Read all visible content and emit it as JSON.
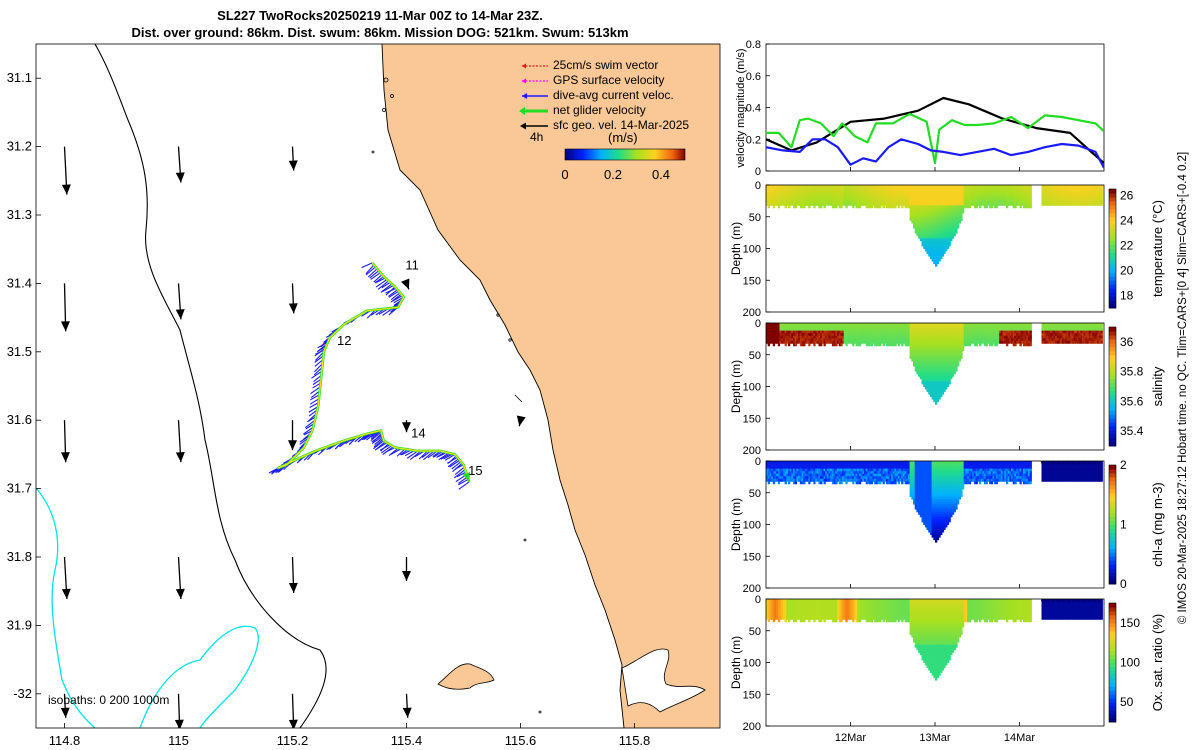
{
  "title": {
    "line1": "SL227 TwoRocks20250219 11-Mar 00Z to 14-Mar 23Z.",
    "line2": "Dist. over ground: 86km. Dist. swum: 86km. Mission DOG: 521km. Swum: 513km"
  },
  "colors": {
    "land": "#f9c896",
    "swim": "#e31a1c",
    "gps": "#ff00ff",
    "dive_avg": "#1a1aff",
    "net": "#22dd22",
    "sfc_geo": "#000000",
    "isobath": "#00e5e5"
  },
  "credit": "© IMOS 20-Mar-2025 18:27:12 Hobart time. no QC. Tlim=CARS+[0 4] Slim=CARS+[-0.4 0.2]",
  "chart_data": [
    {
      "type": "map",
      "name": "track map",
      "x_ticks": [
        "114.8",
        "115",
        "115.2",
        "115.4",
        "115.6",
        "115.8"
      ],
      "y_ticks": [
        "31.1",
        "31.2",
        "31.3",
        "31.4",
        "31.5",
        "31.6",
        "31.7",
        "31.8",
        "31.9",
        "-32"
      ],
      "legend": {
        "entries": [
          "25cm/s swim vector",
          "GPS surface velocity",
          "dive-avg current veloc.",
          "net glider velocity",
          "sfc geo. vel. 14-Mar-2025"
        ],
        "scale_label": "4h",
        "colorbar_label": "(m/s)",
        "colorbar_ticks": [
          "0",
          "0.2",
          "0.4"
        ]
      },
      "day_labels": [
        {
          "text": "11",
          "lon": 115.37,
          "lat": -31.38
        },
        {
          "text": "12",
          "lon": 115.25,
          "lat": -31.49
        },
        {
          "text": "14",
          "lon": 115.38,
          "lat": -31.625
        },
        {
          "text": "15",
          "lon": 115.48,
          "lat": -31.68
        }
      ],
      "isobaths_label": "isobaths: 0   200  1000m",
      "track": [
        {
          "lon": 115.34,
          "lat": -31.37
        },
        {
          "lon": 115.36,
          "lat": -31.39
        },
        {
          "lon": 115.38,
          "lat": -31.405
        },
        {
          "lon": 115.395,
          "lat": -31.42
        },
        {
          "lon": 115.385,
          "lat": -31.435
        },
        {
          "lon": 115.33,
          "lat": -31.44
        },
        {
          "lon": 115.29,
          "lat": -31.46
        },
        {
          "lon": 115.265,
          "lat": -31.48
        },
        {
          "lon": 115.255,
          "lat": -31.5
        },
        {
          "lon": 115.25,
          "lat": -31.54
        },
        {
          "lon": 115.245,
          "lat": -31.58
        },
        {
          "lon": 115.235,
          "lat": -31.615
        },
        {
          "lon": 115.22,
          "lat": -31.64
        },
        {
          "lon": 115.19,
          "lat": -31.665
        },
        {
          "lon": 115.175,
          "lat": -31.67
        },
        {
          "lon": 115.2,
          "lat": -31.66
        },
        {
          "lon": 115.24,
          "lat": -31.645
        },
        {
          "lon": 115.29,
          "lat": -31.63
        },
        {
          "lon": 115.33,
          "lat": -31.62
        },
        {
          "lon": 115.355,
          "lat": -31.615
        },
        {
          "lon": 115.36,
          "lat": -31.63
        },
        {
          "lon": 115.38,
          "lat": -31.64
        },
        {
          "lon": 115.42,
          "lat": -31.645
        },
        {
          "lon": 115.46,
          "lat": -31.645
        },
        {
          "lon": 115.485,
          "lat": -31.65
        },
        {
          "lon": 115.5,
          "lat": -31.665
        },
        {
          "lon": 115.51,
          "lat": -31.69
        }
      ],
      "sfc_geo_vectors": [
        {
          "lon": 114.8,
          "lat": -31.2,
          "u": 0.02,
          "v": -0.4
        },
        {
          "lon": 115.0,
          "lat": -31.2,
          "u": 0.02,
          "v": -0.3
        },
        {
          "lon": 115.2,
          "lat": -31.2,
          "u": 0.01,
          "v": -0.2
        },
        {
          "lon": 114.8,
          "lat": -31.4,
          "u": 0.01,
          "v": -0.4
        },
        {
          "lon": 115.0,
          "lat": -31.4,
          "u": 0.02,
          "v": -0.3
        },
        {
          "lon": 115.2,
          "lat": -31.4,
          "u": 0.01,
          "v": -0.25
        },
        {
          "lon": 115.4,
          "lat": -31.4,
          "u": 0.02,
          "v": -0.05
        },
        {
          "lon": 114.8,
          "lat": -31.6,
          "u": 0.01,
          "v": -0.35
        },
        {
          "lon": 115.0,
          "lat": -31.6,
          "u": 0.02,
          "v": -0.35
        },
        {
          "lon": 115.2,
          "lat": -31.6,
          "u": 0.0,
          "v": -0.25
        },
        {
          "lon": 115.4,
          "lat": -31.6,
          "u": 0.0,
          "v": -0.1
        },
        {
          "lon": 115.6,
          "lat": -31.6,
          "u": -0.01,
          "v": -0.05
        },
        {
          "lon": 114.8,
          "lat": -31.8,
          "u": 0.02,
          "v": -0.35
        },
        {
          "lon": 115.0,
          "lat": -31.8,
          "u": 0.02,
          "v": -0.35
        },
        {
          "lon": 115.2,
          "lat": -31.8,
          "u": 0.01,
          "v": -0.3
        },
        {
          "lon": 115.4,
          "lat": -31.8,
          "u": 0.0,
          "v": -0.2
        },
        {
          "lon": 114.8,
          "lat": -32.0,
          "u": 0.01,
          "v": -0.2
        },
        {
          "lon": 115.0,
          "lat": -32.0,
          "u": 0.01,
          "v": -0.3
        },
        {
          "lon": 115.2,
          "lat": -32.0,
          "u": 0.01,
          "v": -0.3
        },
        {
          "lon": 115.4,
          "lat": -32.0,
          "u": 0.01,
          "v": -0.2
        }
      ]
    },
    {
      "type": "line",
      "name": "velocity magnitude",
      "ylabel": "velocity magnitude (m/s)",
      "ylim": [
        0,
        0.8
      ],
      "y_ticks": [
        "0",
        "0.2",
        "0.4",
        "0.6",
        "0.8"
      ],
      "xlim": [
        11.0,
        15.0
      ],
      "x_ticks": [
        "12Mar",
        "13Mar",
        "14Mar"
      ],
      "series": [
        {
          "name": "sfc geo. vel.",
          "color": "#000000",
          "x": [
            11.0,
            11.3,
            11.6,
            12.0,
            12.4,
            12.8,
            13.1,
            13.4,
            13.8,
            14.2,
            14.6,
            14.85,
            15.0
          ],
          "y": [
            0.2,
            0.13,
            0.18,
            0.31,
            0.33,
            0.38,
            0.46,
            0.42,
            0.33,
            0.27,
            0.24,
            0.12,
            0.05
          ]
        },
        {
          "name": "net glider velocity",
          "color": "#22dd22",
          "x": [
            11.0,
            11.15,
            11.3,
            11.4,
            11.5,
            11.65,
            11.8,
            11.9,
            12.05,
            12.2,
            12.3,
            12.4,
            12.5,
            12.7,
            12.9,
            13.0,
            13.05,
            13.2,
            13.35,
            13.5,
            13.7,
            13.9,
            14.1,
            14.3,
            14.5,
            14.7,
            14.9,
            15.0
          ],
          "y": [
            0.24,
            0.24,
            0.15,
            0.32,
            0.33,
            0.3,
            0.22,
            0.3,
            0.22,
            0.18,
            0.3,
            0.3,
            0.3,
            0.36,
            0.31,
            0.05,
            0.26,
            0.32,
            0.29,
            0.29,
            0.3,
            0.34,
            0.27,
            0.35,
            0.34,
            0.32,
            0.3,
            0.25
          ]
        },
        {
          "name": "dive-avg current veloc.",
          "color": "#1a1aff",
          "x": [
            11.0,
            11.2,
            11.4,
            11.55,
            11.7,
            11.85,
            12.0,
            12.15,
            12.3,
            12.45,
            12.6,
            12.8,
            12.95,
            13.1,
            13.3,
            13.5,
            13.7,
            13.9,
            14.1,
            14.3,
            14.5,
            14.7,
            14.9,
            15.0
          ],
          "y": [
            0.15,
            0.13,
            0.12,
            0.2,
            0.2,
            0.15,
            0.04,
            0.08,
            0.06,
            0.15,
            0.2,
            0.17,
            0.13,
            0.12,
            0.1,
            0.12,
            0.14,
            0.1,
            0.12,
            0.15,
            0.17,
            0.16,
            0.12,
            0.02
          ]
        }
      ]
    },
    {
      "type": "heatmap",
      "name": "temperature section",
      "ylabel": "Depth (m)",
      "y_ticks": [
        "0",
        "50",
        "100",
        "150",
        "200"
      ],
      "ylim": [
        0,
        200
      ],
      "colorbar_label": "temperature (°C)",
      "colorbar_ticks": [
        "18",
        "20",
        "22",
        "24",
        "26"
      ],
      "clim": [
        17,
        26.5
      ],
      "background_value": 23.5,
      "deep_value": 20.5,
      "dip_value": 22.5
    },
    {
      "type": "heatmap",
      "name": "salinity section",
      "ylabel": "Depth (m)",
      "y_ticks": [
        "0",
        "50",
        "100",
        "150",
        "200"
      ],
      "ylim": [
        0,
        200
      ],
      "colorbar_label": "salinity",
      "colorbar_ticks": [
        "35.4",
        "35.6",
        "35.8",
        "36"
      ],
      "clim": [
        35.3,
        36.1
      ],
      "background_value": 35.75,
      "deep_value": 35.6,
      "surface_high_value": 36.1
    },
    {
      "type": "heatmap",
      "name": "chlorophyll section",
      "ylabel": "Depth (m)",
      "y_ticks": [
        "0",
        "50",
        "100",
        "150",
        "200"
      ],
      "ylim": [
        0,
        200
      ],
      "colorbar_label": "chl-a (mg m-3)",
      "colorbar_ticks": [
        "0",
        "1",
        "2"
      ],
      "clim": [
        0,
        2
      ],
      "background_value": 0.6,
      "deep_value": 0.1,
      "mixed_value": 1.0
    },
    {
      "type": "heatmap",
      "name": "oxygen saturation section",
      "ylabel": "Depth (m)",
      "y_ticks": [
        "0",
        "50",
        "100",
        "150",
        "200"
      ],
      "ylim": [
        0,
        200
      ],
      "colorbar_label": "Ox. sat. ratio (%)",
      "colorbar_ticks": [
        "50",
        "100",
        "150"
      ],
      "clim": [
        25,
        175
      ],
      "background_value": 110,
      "patch_value": 135,
      "deep_value": 95
    }
  ]
}
